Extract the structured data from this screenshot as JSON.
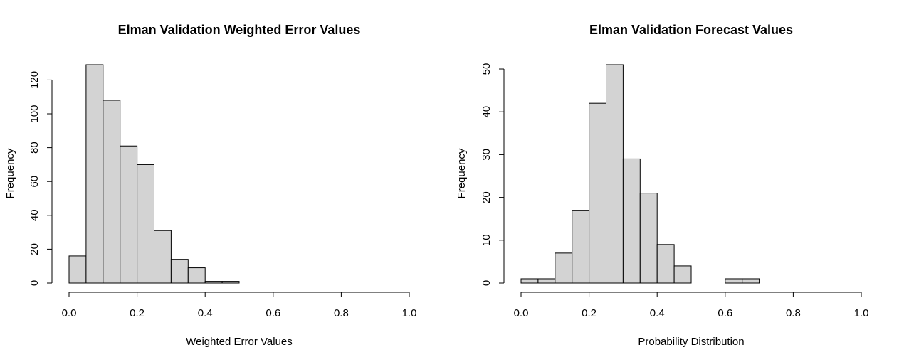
{
  "chart_data": [
    {
      "type": "bar",
      "title": "Elman Validation Weighted Error Values",
      "xlabel": "Weighted Error Values",
      "ylabel": "Frequency",
      "bin_width": 0.05,
      "bins_start": [
        0.0,
        0.05,
        0.1,
        0.15,
        0.2,
        0.25,
        0.3,
        0.35,
        0.4,
        0.45
      ],
      "values": [
        16,
        129,
        108,
        81,
        70,
        31,
        14,
        9,
        1,
        1
      ],
      "xlim": [
        0,
        1
      ],
      "ylim": [
        0,
        129
      ],
      "x_ticks": [
        0.0,
        0.2,
        0.4,
        0.6,
        0.8,
        1.0
      ],
      "x_tick_labels": [
        "0.0",
        "0.2",
        "0.4",
        "0.6",
        "0.8",
        "1.0"
      ],
      "y_ticks": [
        0,
        20,
        40,
        60,
        80,
        100,
        120
      ],
      "y_tick_labels": [
        "0",
        "20",
        "40",
        "60",
        "80",
        "100",
        "120"
      ],
      "grid": false,
      "bar_color": "#d3d3d3"
    },
    {
      "type": "bar",
      "title": "Elman Validation Forecast Values",
      "xlabel": "Probability Distribution",
      "ylabel": "Frequency",
      "bin_width": 0.05,
      "bins_start": [
        0.0,
        0.05,
        0.1,
        0.15,
        0.2,
        0.25,
        0.3,
        0.35,
        0.4,
        0.45,
        0.5,
        0.55,
        0.6,
        0.65
      ],
      "values": [
        1,
        1,
        7,
        17,
        42,
        51,
        29,
        21,
        9,
        4,
        0,
        0,
        1,
        1
      ],
      "xlim": [
        0,
        1
      ],
      "ylim": [
        0,
        51
      ],
      "x_ticks": [
        0.0,
        0.2,
        0.4,
        0.6,
        0.8,
        1.0
      ],
      "x_tick_labels": [
        "0.0",
        "0.2",
        "0.4",
        "0.6",
        "0.8",
        "1.0"
      ],
      "y_ticks": [
        0,
        10,
        20,
        30,
        40,
        50
      ],
      "y_tick_labels": [
        "0",
        "10",
        "20",
        "30",
        "40",
        "50"
      ],
      "grid": false,
      "bar_color": "#d3d3d3"
    }
  ]
}
